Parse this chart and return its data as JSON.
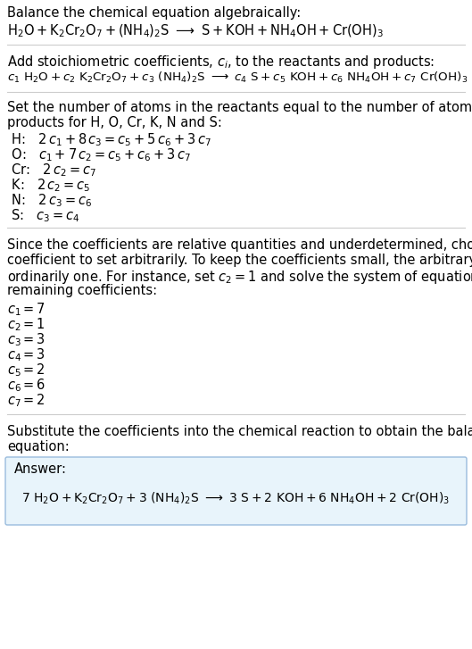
{
  "bg_color": "#ffffff",
  "text_color": "#000000",
  "fs": 10.5,
  "fs_eq": 10.0,
  "fs_coeff": 10.5,
  "section1_title": "Balance the chemical equation algebraically:",
  "eq1": "$\\mathrm{H_2O + K_2Cr_2O_7 + (NH_4)_2S \\ \\longrightarrow \\ S + KOH + NH_4OH + Cr(OH)_3}$",
  "section2_title": "Add stoichiometric coefficients, $c_i$, to the reactants and products:",
  "eq2": "$c_1\\ \\mathrm{H_2O} + c_2\\ \\mathrm{K_2Cr_2O_7} + c_3\\ \\mathrm{(NH_4)_2S} \\ \\longrightarrow\\ c_4\\ \\mathrm{S} + c_5\\ \\mathrm{KOH} + c_6\\ \\mathrm{NH_4OH} + c_7\\ \\mathrm{Cr(OH)_3}$",
  "section3_title": "Set the number of atoms in the reactants equal to the number of atoms in the\nproducts for H, O, Cr, K, N and S:",
  "atom_lines": [
    " H:  $\\ 2\\,c_1 + 8\\,c_3 = c_5 + 5\\,c_6 + 3\\,c_7$",
    " O:  $\\ c_1 + 7\\,c_2 = c_5 + c_6 + 3\\,c_7$",
    " Cr:  $\\ 2\\,c_2 = c_7$",
    " K:  $\\ 2\\,c_2 = c_5$",
    " N:  $\\ 2\\,c_3 = c_6$",
    " S:  $\\ c_3 = c_4$"
  ],
  "section4_title": "Since the coefficients are relative quantities and underdetermined, choose a\ncoefficient to set arbitrarily. To keep the coefficients small, the arbitrary value is\nordinarily one. For instance, set $c_2 = 1$ and solve the system of equations for the\nremaining coefficients:",
  "coeff_lines": [
    "$c_1 = 7$",
    "$c_2 = 1$",
    "$c_3 = 3$",
    "$c_4 = 3$",
    "$c_5 = 2$",
    "$c_6 = 6$",
    "$c_7 = 2$"
  ],
  "section5_title": "Substitute the coefficients into the chemical reaction to obtain the balanced\nequation:",
  "answer_label": "Answer:",
  "answer_eq": "$7\\ \\mathrm{H_2O} + \\mathrm{K_2Cr_2O_7} + 3\\ \\mathrm{(NH_4)_2S} \\ \\longrightarrow \\ 3\\ \\mathrm{S} + 2\\ \\mathrm{KOH} + 6\\ \\mathrm{NH_4OH} + 2\\ \\mathrm{Cr(OH)_3}$",
  "divider_color": "#cccccc",
  "box_edge_color": "#99bbdd",
  "box_face_color": "#e8f4fb"
}
